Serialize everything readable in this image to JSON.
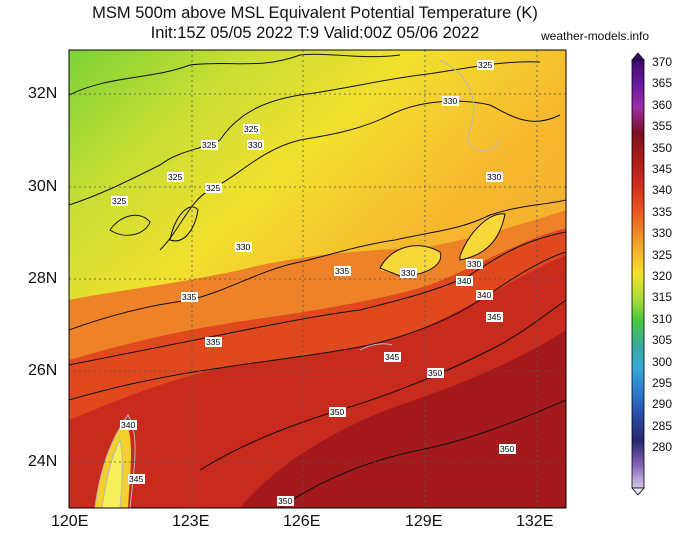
{
  "header": {
    "title_line1": "MSM 500m above MSL Equivalent Potential Temperature (K)",
    "title_line2": "Init:15Z 05/05 2022  T:9 Valid:00Z 05/06 2022",
    "credit": "weather-models.info"
  },
  "map": {
    "lat_ticks": [
      "32N",
      "30N",
      "28N",
      "26N",
      "24N"
    ],
    "lon_ticks": [
      "120E",
      "123E",
      "126E",
      "129E",
      "132E"
    ],
    "contour_labels": [
      "325",
      "325",
      "330",
      "325",
      "325",
      "325",
      "330",
      "330",
      "325",
      "330",
      "330",
      "335",
      "330",
      "335",
      "340",
      "335",
      "340",
      "345",
      "350",
      "350",
      "340",
      "345",
      "350",
      "345",
      "350"
    ]
  },
  "colorbar": {
    "labels": [
      "370",
      "365",
      "360",
      "355",
      "350",
      "345",
      "340",
      "335",
      "330",
      "325",
      "320",
      "315",
      "310",
      "305",
      "300",
      "295",
      "290",
      "285",
      "280"
    ],
    "colors": [
      "#3b0a6e",
      "#6a1aa0",
      "#9a2ea8",
      "#7a1020",
      "#a01a1a",
      "#c82820",
      "#e2441e",
      "#ee7a22",
      "#f5ac2a",
      "#f2e22c",
      "#a8dc38",
      "#46c83e",
      "#3aa8a4",
      "#34a8d8",
      "#2c78c8",
      "#2a4aa8",
      "#28286a",
      "#7a5ab0",
      "#d6c8ea"
    ]
  }
}
